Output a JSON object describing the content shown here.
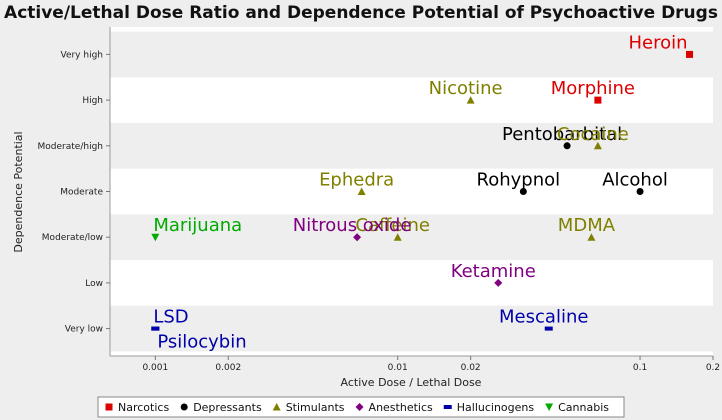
{
  "chart_data": {
    "type": "scatter",
    "title": "Active/Lethal Dose Ratio and Dependence Potential of Psychoactive Drugs",
    "xlabel": "Active Dose / Lethal Dose",
    "ylabel": "Dependence Potential",
    "x_scale": "log",
    "xlim": [
      0.00065,
      0.2
    ],
    "x_ticks": [
      {
        "value": 0.001,
        "label": "0.001"
      },
      {
        "value": 0.002,
        "label": "0.002"
      },
      {
        "value": 0.01,
        "label": "0.01"
      },
      {
        "value": 0.02,
        "label": "0.02"
      },
      {
        "value": 0.1,
        "label": "0.1"
      },
      {
        "value": 0.2,
        "label": "0.2"
      }
    ],
    "y_categories": [
      "Very low",
      "Low",
      "Moderate/low",
      "Moderate",
      "Moderate/high",
      "High",
      "Very high"
    ],
    "ylim": [
      -0.6,
      6.6
    ],
    "grid": "alternating horizontal bands",
    "legend_position": "bottom",
    "series": [
      {
        "name": "Narcotics",
        "color": "#DD0000",
        "marker": "square",
        "points": [
          {
            "label": "Heroin",
            "x": 0.16,
            "y": 6
          },
          {
            "label": "Morphine",
            "x": 0.067,
            "y": 5
          }
        ]
      },
      {
        "name": "Depressants",
        "color": "#000000",
        "marker": "circle",
        "points": [
          {
            "label": "Pentobarbital",
            "x": 0.05,
            "y": 4
          },
          {
            "label": "Rohypnol",
            "x": 0.033,
            "y": 3
          },
          {
            "label": "Alcohol",
            "x": 0.1,
            "y": 3
          }
        ]
      },
      {
        "name": "Stimulants",
        "color": "#808000",
        "marker": "triangle-up",
        "points": [
          {
            "label": "Nicotine",
            "x": 0.02,
            "y": 5
          },
          {
            "label": "Cocaine",
            "x": 0.067,
            "y": 4
          },
          {
            "label": "Ephedra",
            "x": 0.0071,
            "y": 3
          },
          {
            "label": "Caffeine",
            "x": 0.01,
            "y": 2
          },
          {
            "label": "MDMA",
            "x": 0.063,
            "y": 2
          }
        ]
      },
      {
        "name": "Anesthetics",
        "color": "#800080",
        "marker": "diamond",
        "points": [
          {
            "label": "Nitrous oxide",
            "x": 0.0068,
            "y": 2
          },
          {
            "label": "Ketamine",
            "x": 0.026,
            "y": 1
          }
        ]
      },
      {
        "name": "Hallucinogens",
        "color": "#0000AA",
        "marker": "rect",
        "points": [
          {
            "label": "LSD",
            "x": 0.001,
            "y": 0
          },
          {
            "label": "Psilocybin",
            "x": 0.001,
            "y": 0
          },
          {
            "label": "Mescaline",
            "x": 0.042,
            "y": 0
          }
        ]
      },
      {
        "name": "Cannabis",
        "color": "#00AA00",
        "marker": "triangle-down",
        "points": [
          {
            "label": "Marijuana",
            "x": 0.001,
            "y": 2
          }
        ]
      }
    ]
  }
}
